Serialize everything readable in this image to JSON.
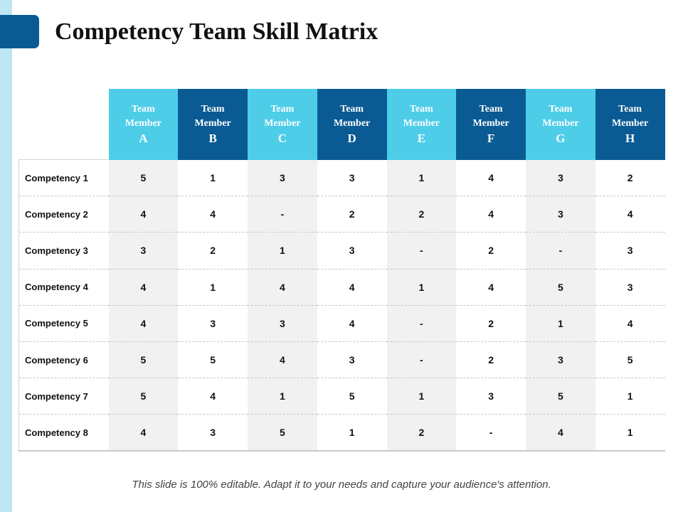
{
  "title": "Competency Team Skill Matrix",
  "colors": {
    "accent_dark": "#0a5b94",
    "accent_light": "#4ecde9",
    "strip": "#bfe6f5"
  },
  "columns": [
    {
      "line1": "Team",
      "line2": "Member",
      "letter": "A"
    },
    {
      "line1": "Team",
      "line2": "Member",
      "letter": "B"
    },
    {
      "line1": "Team",
      "line2": "Member",
      "letter": "C"
    },
    {
      "line1": "Team",
      "line2": "Member",
      "letter": "D"
    },
    {
      "line1": "Team",
      "line2": "Member",
      "letter": "E"
    },
    {
      "line1": "Team",
      "line2": "Member",
      "letter": "F"
    },
    {
      "line1": "Team",
      "line2": "Member",
      "letter": "G"
    },
    {
      "line1": "Team",
      "line2": "Member",
      "letter": "H"
    }
  ],
  "rows": [
    {
      "label": "Competency 1",
      "values": [
        "5",
        "1",
        "3",
        "3",
        "1",
        "4",
        "3",
        "2"
      ]
    },
    {
      "label": "Competency 2",
      "values": [
        "4",
        "4",
        "-",
        "2",
        "2",
        "4",
        "3",
        "4"
      ]
    },
    {
      "label": "Competency 3",
      "values": [
        "3",
        "2",
        "1",
        "3",
        "-",
        "2",
        "-",
        "3"
      ]
    },
    {
      "label": "Competency 4",
      "values": [
        "4",
        "1",
        "4",
        "4",
        "1",
        "4",
        "5",
        "3"
      ]
    },
    {
      "label": "Competency 5",
      "values": [
        "4",
        "3",
        "3",
        "4",
        "-",
        "2",
        "1",
        "4"
      ]
    },
    {
      "label": "Competency 6",
      "values": [
        "5",
        "5",
        "4",
        "3",
        "-",
        "2",
        "3",
        "5"
      ]
    },
    {
      "label": "Competency 7",
      "values": [
        "5",
        "4",
        "1",
        "5",
        "1",
        "3",
        "5",
        "1"
      ]
    },
    {
      "label": "Competency 8",
      "values": [
        "4",
        "3",
        "5",
        "1",
        "2",
        "-",
        "4",
        "1"
      ]
    }
  ],
  "footer": "This slide is 100% editable. Adapt it to your needs and capture your audience's attention."
}
